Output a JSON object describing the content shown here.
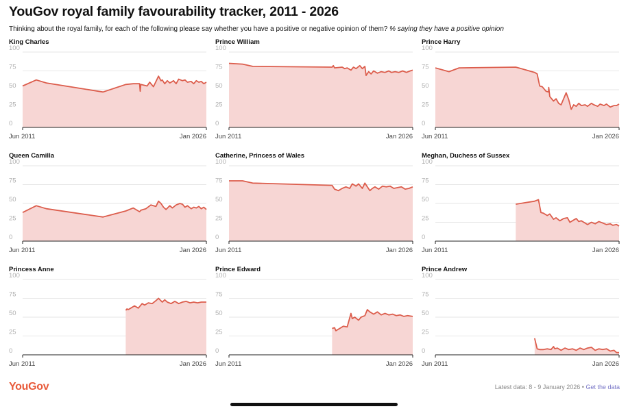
{
  "header": {
    "title": "YouGov royal family favourability tracker, 2011 - 2026",
    "subtitle_main": "Thinking about the royal family, for each of the following please say whether you have a positive or negative opinion of them?",
    "subtitle_note": "% saying they have a positive opinion"
  },
  "footer": {
    "logo": "YouGov",
    "latest": "Latest data: 8 - 9 January 2026 • ",
    "link": "Get the data"
  },
  "colors": {
    "line": "#dc5d4c",
    "area": "#f7d6d4",
    "logo": "#e85a3a",
    "link": "#7a78c8"
  },
  "chart_data": [
    {
      "type": "area",
      "title": "King Charles",
      "xlim": [
        2011.42,
        2026.0
      ],
      "ylim": [
        0,
        100
      ],
      "yticks": [
        0,
        25,
        50,
        75,
        100
      ],
      "xticklabels": [
        "Jun 2011",
        "Jan 2026"
      ],
      "x": [
        2011.42,
        2012.5,
        2013.3,
        2017.8,
        2019.6,
        2020.2,
        2020.7,
        2020.75,
        2020.8,
        2021.3,
        2021.5,
        2021.8,
        2022.2,
        2022.4,
        2022.5,
        2022.7,
        2022.9,
        2023.1,
        2023.4,
        2023.6,
        2023.8,
        2024.1,
        2024.3,
        2024.5,
        2024.8,
        2025.0,
        2025.2,
        2025.4,
        2025.6,
        2025.8,
        2026.0
      ],
      "y": [
        55,
        63,
        59,
        47,
        57,
        58,
        58,
        48,
        57,
        55,
        60,
        54,
        68,
        62,
        63,
        58,
        62,
        59,
        62,
        58,
        64,
        62,
        63,
        60,
        61,
        58,
        62,
        60,
        61,
        58,
        60
      ]
    },
    {
      "type": "area",
      "title": "Prince William",
      "xlim": [
        2011.42,
        2026.0
      ],
      "ylim": [
        0,
        100
      ],
      "yticks": [
        0,
        25,
        50,
        75,
        100
      ],
      "xticklabels": [
        "Jun 2011",
        "Jan 2026"
      ],
      "x": [
        2011.42,
        2012.5,
        2013.3,
        2019.6,
        2019.7,
        2019.8,
        2020.4,
        2020.6,
        2020.8,
        2021.1,
        2021.3,
        2021.5,
        2021.8,
        2022.0,
        2022.2,
        2022.3,
        2022.5,
        2022.7,
        2022.9,
        2023.2,
        2023.5,
        2023.8,
        2024.1,
        2024.3,
        2024.6,
        2024.9,
        2025.2,
        2025.5,
        2025.8,
        2026.0
      ],
      "y": [
        85,
        84,
        81,
        80,
        82,
        79,
        80,
        78,
        79,
        76,
        80,
        78,
        82,
        78,
        81,
        69,
        74,
        71,
        75,
        72,
        74,
        73,
        75,
        73,
        74,
        73,
        75,
        73,
        75,
        76
      ]
    },
    {
      "type": "area",
      "title": "Prince Harry",
      "xlim": [
        2011.42,
        2026.0
      ],
      "ylim": [
        0,
        100
      ],
      "yticks": [
        0,
        25,
        50,
        75,
        100
      ],
      "xticklabels": [
        "Jun 2011",
        "Jan 2026"
      ],
      "x": [
        2011.42,
        2012.5,
        2013.3,
        2017.8,
        2019.3,
        2019.5,
        2019.7,
        2019.9,
        2020.2,
        2020.4,
        2020.42,
        2020.5,
        2020.8,
        2021.0,
        2021.2,
        2021.4,
        2021.6,
        2021.8,
        2022.0,
        2022.2,
        2022.4,
        2022.6,
        2022.8,
        2023.0,
        2023.3,
        2023.5,
        2023.8,
        2024.0,
        2024.3,
        2024.5,
        2024.8,
        2025.0,
        2025.3,
        2025.6,
        2025.8,
        2026.0
      ],
      "y": [
        79,
        74,
        79,
        80,
        73,
        71,
        55,
        54,
        48,
        47,
        53,
        41,
        35,
        38,
        32,
        30,
        38,
        46,
        37,
        24,
        30,
        28,
        32,
        29,
        30,
        28,
        32,
        30,
        28,
        31,
        29,
        31,
        27,
        29,
        29,
        31
      ]
    },
    {
      "type": "area",
      "title": "Queen Camilla",
      "xlim": [
        2011.42,
        2026.0
      ],
      "ylim": [
        0,
        100
      ],
      "yticks": [
        0,
        25,
        50,
        75,
        100
      ],
      "xticklabels": [
        "Jun 2011",
        "Jan 2026"
      ],
      "x": [
        2011.42,
        2012.5,
        2013.3,
        2017.8,
        2019.6,
        2020.2,
        2020.7,
        2020.8,
        2021.2,
        2021.6,
        2022.0,
        2022.2,
        2022.4,
        2022.6,
        2022.8,
        2023.1,
        2023.3,
        2023.6,
        2023.9,
        2024.1,
        2024.3,
        2024.5,
        2024.8,
        2025.0,
        2025.2,
        2025.4,
        2025.6,
        2025.8,
        2026.0
      ],
      "y": [
        38,
        47,
        43,
        32,
        40,
        44,
        39,
        41,
        43,
        48,
        46,
        53,
        50,
        45,
        42,
        47,
        44,
        48,
        50,
        49,
        45,
        47,
        43,
        45,
        44,
        46,
        43,
        45,
        42
      ]
    },
    {
      "type": "area",
      "title": "Catherine, Princess of Wales",
      "xlim": [
        2011.42,
        2026.0
      ],
      "ylim": [
        0,
        100
      ],
      "yticks": [
        0,
        25,
        50,
        75,
        100
      ],
      "xticklabels": [
        "Jun 2011",
        "Jan 2026"
      ],
      "x": [
        2011.42,
        2012.5,
        2013.3,
        2019.6,
        2019.8,
        2020.1,
        2020.4,
        2020.7,
        2021.0,
        2021.2,
        2021.5,
        2021.7,
        2022.0,
        2022.2,
        2022.4,
        2022.6,
        2022.8,
        2023.0,
        2023.3,
        2023.6,
        2023.9,
        2024.2,
        2024.5,
        2024.8,
        2025.1,
        2025.4,
        2025.7,
        2026.0
      ],
      "y": [
        80,
        80,
        77,
        74,
        69,
        67,
        70,
        72,
        70,
        76,
        73,
        76,
        70,
        77,
        72,
        67,
        70,
        72,
        69,
        73,
        72,
        73,
        70,
        71,
        72,
        69,
        70,
        72
      ]
    },
    {
      "type": "area",
      "title": "Meghan, Duchess of Sussex",
      "xlim": [
        2011.42,
        2026.0
      ],
      "ylim": [
        0,
        100
      ],
      "yticks": [
        0,
        25,
        50,
        75,
        100
      ],
      "xticklabels": [
        "Jun 2011",
        "Jan 2026"
      ],
      "x": [
        2017.8,
        2019.3,
        2019.6,
        2019.8,
        2020.0,
        2020.3,
        2020.5,
        2020.8,
        2021.0,
        2021.3,
        2021.6,
        2021.9,
        2022.1,
        2022.4,
        2022.6,
        2022.8,
        2023.0,
        2023.3,
        2023.5,
        2023.8,
        2024.1,
        2024.4,
        2024.7,
        2025.0,
        2025.3,
        2025.5,
        2025.8,
        2026.0
      ],
      "y": [
        49,
        53,
        55,
        38,
        37,
        34,
        36,
        29,
        31,
        27,
        30,
        31,
        25,
        28,
        30,
        26,
        27,
        24,
        22,
        25,
        23,
        26,
        24,
        22,
        23,
        21,
        22,
        20
      ]
    },
    {
      "type": "area",
      "title": "Princess Anne",
      "xlim": [
        2011.42,
        2026.0
      ],
      "ylim": [
        0,
        100
      ],
      "yticks": [
        0,
        25,
        50,
        75,
        100
      ],
      "xticklabels": [
        "Jun 2011",
        "Jan 2026"
      ],
      "x": [
        2019.6,
        2019.7,
        2019.8,
        2020.0,
        2020.3,
        2020.6,
        2020.9,
        2021.1,
        2021.4,
        2021.7,
        2022.0,
        2022.2,
        2022.5,
        2022.7,
        2022.9,
        2023.2,
        2023.5,
        2023.8,
        2024.1,
        2024.4,
        2024.7,
        2025.0,
        2025.3,
        2025.6,
        2026.0
      ],
      "y": [
        59,
        61,
        60,
        62,
        65,
        62,
        68,
        66,
        69,
        68,
        72,
        75,
        70,
        73,
        70,
        68,
        71,
        68,
        70,
        71,
        69,
        70,
        69,
        70,
        70
      ]
    },
    {
      "type": "area",
      "title": "Prince Edward",
      "xlim": [
        2011.42,
        2026.0
      ],
      "ylim": [
        0,
        100
      ],
      "yticks": [
        0,
        25,
        50,
        75,
        100
      ],
      "xticklabels": [
        "Jun 2011",
        "Jan 2026"
      ],
      "x": [
        2019.6,
        2019.8,
        2019.9,
        2020.2,
        2020.5,
        2020.8,
        2021.1,
        2021.2,
        2021.4,
        2021.7,
        2021.9,
        2022.2,
        2022.4,
        2022.6,
        2022.9,
        2023.2,
        2023.5,
        2023.8,
        2024.1,
        2024.4,
        2024.7,
        2025.0,
        2025.3,
        2025.6,
        2026.0
      ],
      "y": [
        35,
        36,
        32,
        35,
        38,
        37,
        55,
        48,
        50,
        46,
        50,
        52,
        60,
        57,
        54,
        57,
        53,
        55,
        53,
        54,
        52,
        53,
        51,
        52,
        51
      ]
    },
    {
      "type": "area",
      "title": "Prince Andrew",
      "xlim": [
        2011.42,
        2026.0
      ],
      "ylim": [
        0,
        100
      ],
      "yticks": [
        0,
        25,
        50,
        75,
        100
      ],
      "xticklabels": [
        "Jun 2011",
        "Jan 2026"
      ],
      "x": [
        2019.3,
        2019.5,
        2019.7,
        2020.0,
        2020.3,
        2020.6,
        2020.8,
        2020.9,
        2021.1,
        2021.4,
        2021.7,
        2022.0,
        2022.3,
        2022.6,
        2022.9,
        2023.2,
        2023.5,
        2023.8,
        2024.1,
        2024.4,
        2024.7,
        2025.0,
        2025.3,
        2025.6,
        2025.8,
        2026.0
      ],
      "y": [
        22,
        8,
        7,
        7,
        8,
        7,
        11,
        8,
        9,
        6,
        9,
        7,
        8,
        6,
        9,
        7,
        9,
        10,
        6,
        8,
        7,
        8,
        5,
        6,
        3,
        3
      ]
    }
  ]
}
